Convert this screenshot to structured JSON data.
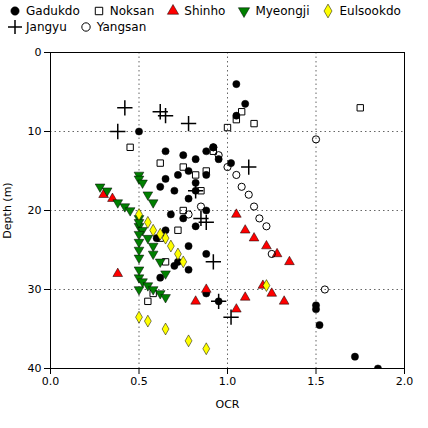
{
  "chart_data": {
    "type": "scatter",
    "xlabel": "OCR",
    "ylabel": "Depth (m)",
    "xlim": [
      0.0,
      2.0
    ],
    "ylim": [
      40,
      0
    ],
    "xticks": [
      {
        "value": 0,
        "label": "0.0"
      },
      0.5,
      {
        "value": 1,
        "label": "1.0"
      },
      1.5,
      {
        "value": 2,
        "label": "2.0"
      }
    ],
    "yticks": [
      0,
      10,
      20,
      30,
      40
    ],
    "grid": true,
    "legend": "upper left",
    "series": [
      {
        "name": "Gadukdo",
        "color": "black",
        "marker": "circle",
        "x": [
          1.05,
          1.1,
          0.5,
          0.65,
          0.75,
          0.82,
          0.88,
          0.92,
          0.95,
          1.02,
          1.05,
          0.82,
          0.88,
          0.78,
          0.72,
          0.7,
          0.65,
          0.62,
          0.78,
          0.82,
          0.88,
          0.75,
          0.68,
          0.65,
          0.6,
          0.82,
          0.78,
          0.88,
          0.72,
          0.78,
          0.62,
          0.7,
          0.88,
          0.95,
          1.5,
          1.5,
          1.52,
          1.72,
          1.85
        ],
        "values": [
          4.0,
          6.5,
          10.0,
          12.5,
          13.0,
          13.5,
          12.5,
          12.0,
          13.5,
          14.0,
          8.0,
          16.5,
          15.5,
          15.0,
          15.5,
          17.5,
          16.0,
          17.0,
          18.5,
          17.5,
          20.0,
          21.0,
          20.5,
          22.5,
          23.5,
          22.0,
          24.5,
          25.5,
          26.5,
          27.5,
          28.5,
          27.0,
          30.5,
          31.5,
          32.0,
          32.5,
          34.5,
          38.5,
          40.0
        ]
      },
      {
        "name": "Noksan",
        "color": "black",
        "marker": "square-open",
        "x": [
          0.45,
          0.62,
          0.75,
          0.82,
          0.88,
          0.92,
          1.05,
          1.08,
          1.15,
          1.0,
          0.85,
          0.75,
          0.72,
          0.62,
          0.65,
          0.58,
          0.55,
          1.75
        ],
        "values": [
          12.0,
          14.0,
          14.5,
          15.5,
          15.0,
          12.5,
          8.5,
          7.5,
          9.0,
          9.5,
          17.5,
          20.0,
          22.5,
          23.5,
          26.5,
          30.5,
          31.5,
          7.0
        ]
      },
      {
        "name": "Shinho",
        "color": "red",
        "marker": "triangle-up",
        "x": [
          0.3,
          0.35,
          0.38,
          1.05,
          1.1,
          1.15,
          1.22,
          1.28,
          1.35,
          1.2,
          1.25,
          1.32,
          1.1,
          1.05,
          0.88,
          0.82
        ],
        "values": [
          18.0,
          18.5,
          28.0,
          20.5,
          22.5,
          23.5,
          24.5,
          25.5,
          26.5,
          29.5,
          30.5,
          31.5,
          31.0,
          32.5,
          30.0,
          31.5
        ]
      },
      {
        "name": "Myeongji",
        "color": "green",
        "marker": "triangle-down",
        "x": [
          0.28,
          0.32,
          0.38,
          0.42,
          0.45,
          0.5,
          0.5,
          0.52,
          0.55,
          0.58,
          0.58,
          0.62,
          0.65,
          0.5,
          0.52,
          0.55,
          0.58,
          0.62,
          0.65,
          0.5,
          0.5,
          0.52,
          0.55,
          0.58,
          0.5,
          0.5,
          0.5,
          0.5,
          0.5,
          0.5,
          0.5
        ],
        "values": [
          17.0,
          17.5,
          19.0,
          19.5,
          20.0,
          21.0,
          22.0,
          22.5,
          23.5,
          24.5,
          25.5,
          26.5,
          28.0,
          28.5,
          29.0,
          29.5,
          30.0,
          30.5,
          31.0,
          15.5,
          16.0,
          16.5,
          18.0,
          19.0,
          21.5,
          23.0,
          24.0,
          25.0,
          26.0,
          27.5,
          30.0
        ]
      },
      {
        "name": "Eulsookdo",
        "color": "yellow",
        "marker": "diamond",
        "x": [
          0.5,
          0.55,
          0.58,
          0.62,
          0.65,
          0.68,
          0.72,
          0.75,
          0.5,
          0.55,
          0.65,
          0.78,
          0.88,
          1.22
        ],
        "values": [
          20.5,
          21.5,
          22.5,
          23.0,
          23.5,
          24.5,
          25.5,
          26.5,
          33.5,
          34.0,
          35.0,
          36.5,
          37.5,
          29.5
        ]
      },
      {
        "name": "Jangyu",
        "color": "black",
        "marker": "plus",
        "x": [
          0.38,
          0.42,
          0.62,
          0.65,
          0.78,
          0.82,
          0.85,
          0.88,
          0.92,
          0.95,
          1.02,
          1.12
        ],
        "values": [
          10.0,
          7.0,
          7.5,
          8.0,
          9.0,
          17.5,
          21.0,
          21.5,
          26.5,
          31.5,
          33.5,
          14.5
        ]
      },
      {
        "name": "Yangsan",
        "color": "black",
        "marker": "circle-open",
        "x": [
          0.78,
          0.85,
          0.92,
          0.95,
          1.0,
          1.05,
          1.08,
          1.12,
          1.15,
          1.18,
          1.22,
          1.25,
          1.5,
          1.55
        ],
        "values": [
          20.5,
          19.5,
          12.0,
          13.0,
          14.5,
          15.5,
          17.0,
          18.0,
          19.5,
          21.0,
          22.0,
          25.5,
          11.0,
          30.0
        ]
      }
    ]
  }
}
